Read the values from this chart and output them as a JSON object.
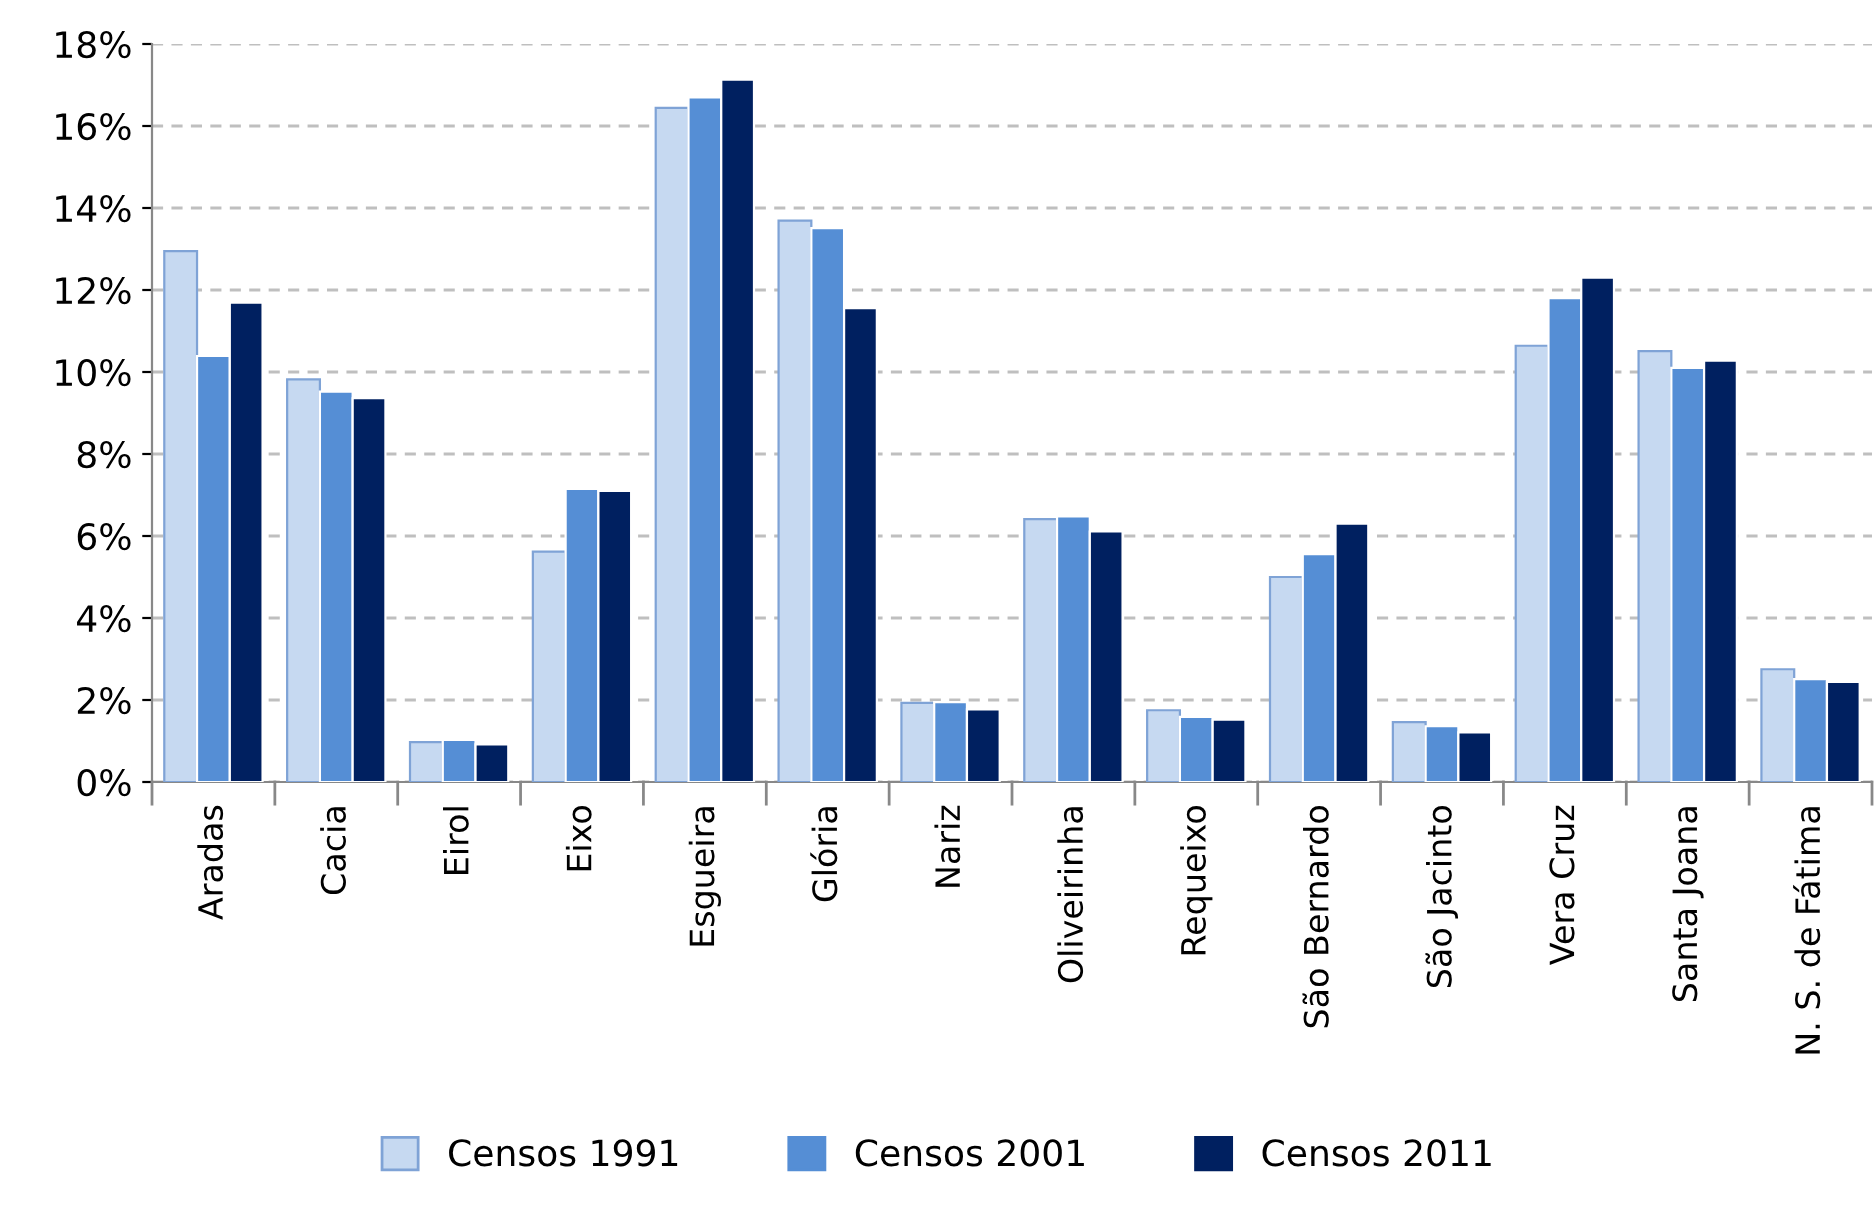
{
  "chart_data": {
    "type": "bar",
    "categories": [
      "Aradas",
      "Cacia",
      "Eirol",
      "Eixo",
      "Esgueira",
      "Glória",
      "Nariz",
      "Oliveirinha",
      "Requeixo",
      "São Bernardo",
      "São Jacinto",
      "Vera Cruz",
      "Santa Joana",
      "N. S. de Fátima"
    ],
    "series": [
      {
        "name": "Censos 1991",
        "color": "#c6d9f1",
        "values": [
          12.95,
          9.82,
          0.97,
          5.62,
          16.44,
          13.69,
          1.93,
          6.41,
          1.75,
          5.0,
          1.46,
          10.64,
          10.51,
          2.75
        ]
      },
      {
        "name": "Censos 2001",
        "color": "#558ed5",
        "values": [
          10.39,
          9.52,
          1.03,
          7.15,
          16.7,
          13.51,
          1.95,
          6.48,
          1.59,
          5.56,
          1.36,
          11.8,
          10.1,
          2.51
        ]
      },
      {
        "name": "Censos 2011",
        "color": "#002060",
        "values": [
          11.69,
          9.36,
          0.92,
          7.1,
          17.13,
          11.56,
          1.77,
          6.11,
          1.52,
          6.3,
          1.21,
          12.3,
          10.28,
          2.44
        ]
      }
    ],
    "ylim": [
      0,
      18
    ],
    "yticks": [
      {
        "value": 0,
        "label": "0%"
      },
      {
        "value": 2,
        "label": "2%"
      },
      {
        "value": 4,
        "label": "4%"
      },
      {
        "value": 6,
        "label": "6%"
      },
      {
        "value": 8,
        "label": "8%"
      },
      {
        "value": 10,
        "label": "10%"
      },
      {
        "value": 12,
        "label": "12%"
      },
      {
        "value": 14,
        "label": "14%"
      },
      {
        "value": 16,
        "label": "16%"
      },
      {
        "value": 18,
        "label": "18%"
      }
    ],
    "grid": "y",
    "legend": "bottom"
  }
}
